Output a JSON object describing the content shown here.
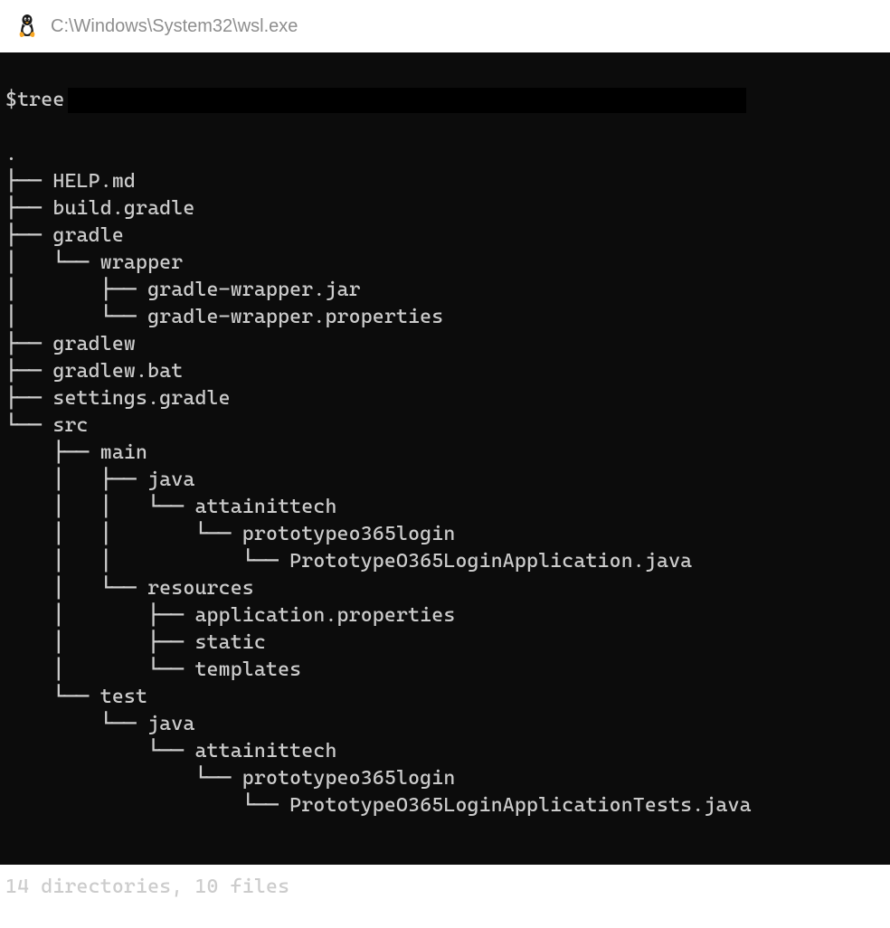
{
  "window": {
    "title": "C:\\Windows\\System32\\wsl.exe",
    "icon": "tux-icon"
  },
  "terminal": {
    "background_color": "#0c0c0c",
    "text_color": "#cccccc",
    "font_family": "Cascadia Mono, Consolas, monospace",
    "font_size": 22,
    "line_height": 30,
    "prompt_symbol": "$",
    "command": "tree",
    "root": ".",
    "tree_lines": [
      ".",
      "├── HELP.md",
      "├── build.gradle",
      "├── gradle",
      "│   └── wrapper",
      "│       ├── gradle-wrapper.jar",
      "│       └── gradle-wrapper.properties",
      "├── gradlew",
      "├── gradlew.bat",
      "├── settings.gradle",
      "└── src",
      "    ├── main",
      "    │   ├── java",
      "    │   │   └── attainittech",
      "    │   │       └── prototypeo365login",
      "    │   │           └── PrototypeO365LoginApplication.java",
      "    │   └── resources",
      "    │       ├── application.properties",
      "    │       ├── static",
      "    │       └── templates",
      "    └── test",
      "        └── java",
      "            └── attainittech",
      "                └── prototypeo365login",
      "                    └── PrototypeO365LoginApplicationTests.java"
    ],
    "summary": "14 directories, 10 files",
    "tree_structure": {
      "name": ".",
      "children": [
        {
          "name": "HELP.md",
          "type": "file"
        },
        {
          "name": "build.gradle",
          "type": "file"
        },
        {
          "name": "gradle",
          "type": "dir",
          "children": [
            {
              "name": "wrapper",
              "type": "dir",
              "children": [
                {
                  "name": "gradle-wrapper.jar",
                  "type": "file"
                },
                {
                  "name": "gradle-wrapper.properties",
                  "type": "file"
                }
              ]
            }
          ]
        },
        {
          "name": "gradlew",
          "type": "file"
        },
        {
          "name": "gradlew.bat",
          "type": "file"
        },
        {
          "name": "settings.gradle",
          "type": "file"
        },
        {
          "name": "src",
          "type": "dir",
          "children": [
            {
              "name": "main",
              "type": "dir",
              "children": [
                {
                  "name": "java",
                  "type": "dir",
                  "children": [
                    {
                      "name": "attainittech",
                      "type": "dir",
                      "children": [
                        {
                          "name": "prototypeo365login",
                          "type": "dir",
                          "children": [
                            {
                              "name": "PrototypeO365LoginApplication.java",
                              "type": "file"
                            }
                          ]
                        }
                      ]
                    }
                  ]
                },
                {
                  "name": "resources",
                  "type": "dir",
                  "children": [
                    {
                      "name": "application.properties",
                      "type": "file"
                    },
                    {
                      "name": "static",
                      "type": "dir"
                    },
                    {
                      "name": "templates",
                      "type": "dir"
                    }
                  ]
                }
              ]
            },
            {
              "name": "test",
              "type": "dir",
              "children": [
                {
                  "name": "java",
                  "type": "dir",
                  "children": [
                    {
                      "name": "attainittech",
                      "type": "dir",
                      "children": [
                        {
                          "name": "prototypeo365login",
                          "type": "dir",
                          "children": [
                            {
                              "name": "PrototypeO365LoginApplicationTests.java",
                              "type": "file"
                            }
                          ]
                        }
                      ]
                    }
                  ]
                }
              ]
            }
          ]
        }
      ]
    },
    "directory_count": 14,
    "file_count": 10
  }
}
